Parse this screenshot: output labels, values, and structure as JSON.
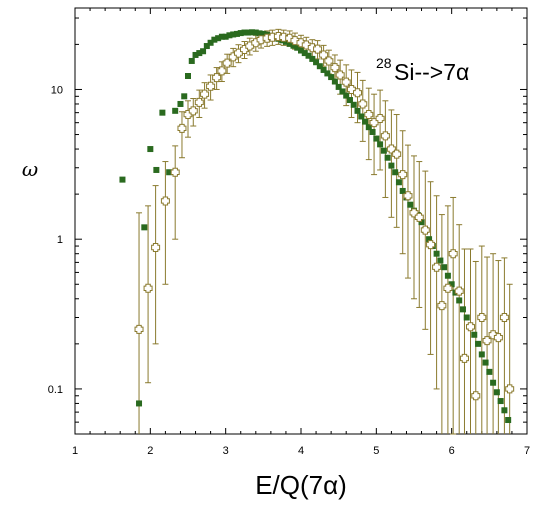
{
  "chart_data": {
    "type": "scatter",
    "title": "",
    "annotation": {
      "mass_number": "28",
      "reaction": "Si-->7α"
    },
    "xlabel": "E/Q(7α)",
    "ylabel": "ω",
    "xlim": [
      1,
      7
    ],
    "ylim": [
      0.05,
      35
    ],
    "yscale": "log",
    "grid": false,
    "x_tick_labels": [
      "1",
      "2",
      "3",
      "4",
      "5",
      "6",
      "7"
    ],
    "y_tick_labels": [
      {
        "value": 0.1,
        "label": "0.1"
      },
      {
        "value": 1,
        "label": "1"
      },
      {
        "value": 10,
        "label": "10"
      }
    ],
    "colors": {
      "filled": "#2a6a1f",
      "open": "#8a7a2e"
    },
    "series": [
      {
        "marker": "filled-square",
        "x": [
          1.63,
          1.85,
          1.92,
          2.0,
          2.08,
          2.16,
          2.25,
          2.33,
          2.4,
          2.45,
          2.5,
          2.55,
          2.6,
          2.65,
          2.7,
          2.75,
          2.8,
          2.85,
          2.9,
          2.95,
          3.0,
          3.05,
          3.1,
          3.15,
          3.2,
          3.25,
          3.3,
          3.35,
          3.4,
          3.45,
          3.5,
          3.55,
          3.6,
          3.65,
          3.7,
          3.75,
          3.8,
          3.85,
          3.9,
          3.95,
          4.0,
          4.05,
          4.1,
          4.15,
          4.2,
          4.25,
          4.3,
          4.35,
          4.4,
          4.45,
          4.5,
          4.55,
          4.6,
          4.65,
          4.7,
          4.75,
          4.8,
          4.85,
          4.9,
          4.95,
          5.0,
          5.05,
          5.1,
          5.15,
          5.2,
          5.25,
          5.3,
          5.35,
          5.4,
          5.45,
          5.5,
          5.55,
          5.6,
          5.65,
          5.7,
          5.75,
          5.8,
          5.85,
          5.9,
          5.95,
          6.0,
          6.05,
          6.1,
          6.15,
          6.2,
          6.25,
          6.3,
          6.35,
          6.4,
          6.45,
          6.5,
          6.55,
          6.6,
          6.65,
          6.7,
          6.75
        ],
        "y": [
          2.5,
          0.08,
          1.2,
          4.0,
          2.9,
          7.0,
          2.8,
          7.2,
          8.0,
          9.0,
          12.3,
          15.5,
          17.0,
          17.5,
          18.0,
          19.5,
          20.5,
          21.5,
          22.0,
          22.5,
          22.5,
          23.0,
          23.3,
          23.5,
          23.8,
          24.0,
          24.0,
          24.1,
          24.0,
          23.7,
          23.5,
          23.2,
          22.8,
          22.3,
          21.8,
          21.3,
          20.8,
          20.2,
          19.6,
          19.0,
          18.2,
          17.5,
          16.8,
          16.0,
          15.2,
          14.3,
          13.5,
          12.8,
          12.1,
          11.3,
          10.4,
          9.7,
          9.1,
          8.5,
          7.9,
          7.2,
          6.6,
          6.1,
          5.6,
          5.2,
          4.7,
          4.3,
          3.9,
          3.5,
          3.1,
          2.8,
          2.4,
          2.1,
          1.9,
          1.7,
          1.55,
          1.45,
          1.3,
          1.15,
          1.0,
          0.9,
          0.8,
          0.72,
          0.65,
          0.57,
          0.5,
          0.44,
          0.39,
          0.34,
          0.3,
          0.26,
          0.23,
          0.2,
          0.17,
          0.15,
          0.13,
          0.11,
          0.095,
          0.083,
          0.072,
          0.062
        ]
      },
      {
        "marker": "open-cross",
        "x": [
          1.85,
          1.97,
          2.07,
          2.2,
          2.33,
          2.42,
          2.5,
          2.57,
          2.65,
          2.72,
          2.8,
          2.88,
          2.95,
          3.02,
          3.1,
          3.17,
          3.25,
          3.32,
          3.4,
          3.47,
          3.55,
          3.62,
          3.7,
          3.77,
          3.85,
          3.92,
          4.0,
          4.07,
          4.15,
          4.22,
          4.3,
          4.37,
          4.45,
          4.52,
          4.6,
          4.67,
          4.75,
          4.82,
          4.9,
          4.97,
          5.05,
          5.12,
          5.2,
          5.27,
          5.35,
          5.42,
          5.5,
          5.57,
          5.65,
          5.72,
          5.8,
          5.87,
          5.95,
          6.02,
          6.1,
          6.17,
          6.25,
          6.32,
          6.4,
          6.47,
          6.55,
          6.62,
          6.7,
          6.77
        ],
        "y": [
          0.25,
          0.47,
          0.88,
          1.8,
          2.8,
          5.5,
          6.8,
          7.2,
          8.2,
          9.3,
          10.5,
          12.0,
          13.3,
          15.0,
          16.5,
          17.5,
          18.5,
          19.5,
          20.5,
          21.5,
          22.0,
          22.3,
          22.6,
          22.3,
          22.0,
          21.2,
          20.5,
          19.8,
          19.0,
          18.6,
          17.0,
          15.5,
          14.0,
          12.5,
          11.2,
          10.0,
          9.5,
          8.0,
          6.8,
          6.0,
          6.4,
          4.9,
          4.0,
          3.7,
          2.7,
          1.95,
          1.5,
          1.4,
          1.15,
          0.92,
          0.65,
          0.36,
          0.47,
          0.8,
          0.45,
          0.16,
          0.26,
          0.09,
          0.3,
          0.21,
          0.23,
          0.22,
          0.3,
          0.1
        ],
        "y_err_low": [
          0.2,
          0.36,
          0.68,
          1.3,
          1.8,
          2.0,
          2.0,
          1.5,
          1.7,
          1.8,
          2.0,
          2.0,
          2.0,
          2.2,
          2.3,
          2.4,
          2.4,
          2.5,
          2.5,
          2.6,
          2.6,
          2.6,
          2.6,
          2.6,
          2.6,
          2.6,
          2.5,
          2.5,
          2.5,
          2.6,
          2.7,
          2.8,
          3.0,
          3.2,
          3.4,
          3.5,
          3.5,
          3.5,
          3.4,
          3.3,
          3.5,
          3.0,
          2.6,
          2.5,
          1.9,
          1.4,
          1.1,
          1.05,
          0.9,
          0.75,
          0.55,
          0.32,
          0.43,
          0.75,
          0.42,
          0.15,
          0.25,
          0.085,
          0.29,
          0.2,
          0.22,
          0.21,
          0.29,
          0.095
        ],
        "y_err_high": [
          1.25,
          1.2,
          1.4,
          1.5,
          1.4,
          1.6,
          1.6,
          1.5,
          1.7,
          1.8,
          2.0,
          2.0,
          2.0,
          2.2,
          2.3,
          2.4,
          2.4,
          2.5,
          2.5,
          2.6,
          2.6,
          2.6,
          2.6,
          2.6,
          2.6,
          2.6,
          2.5,
          2.5,
          2.5,
          2.6,
          2.7,
          2.8,
          3.0,
          3.2,
          3.4,
          3.5,
          3.5,
          3.5,
          3.4,
          3.3,
          3.5,
          3.5,
          3.3,
          3.1,
          2.6,
          2.3,
          2.1,
          1.9,
          1.7,
          1.5,
          1.3,
          1.1,
          1.2,
          1.1,
          0.8,
          0.7,
          0.6,
          0.62,
          0.6,
          0.55,
          0.57,
          0.5,
          0.45,
          0.4
        ]
      }
    ]
  }
}
